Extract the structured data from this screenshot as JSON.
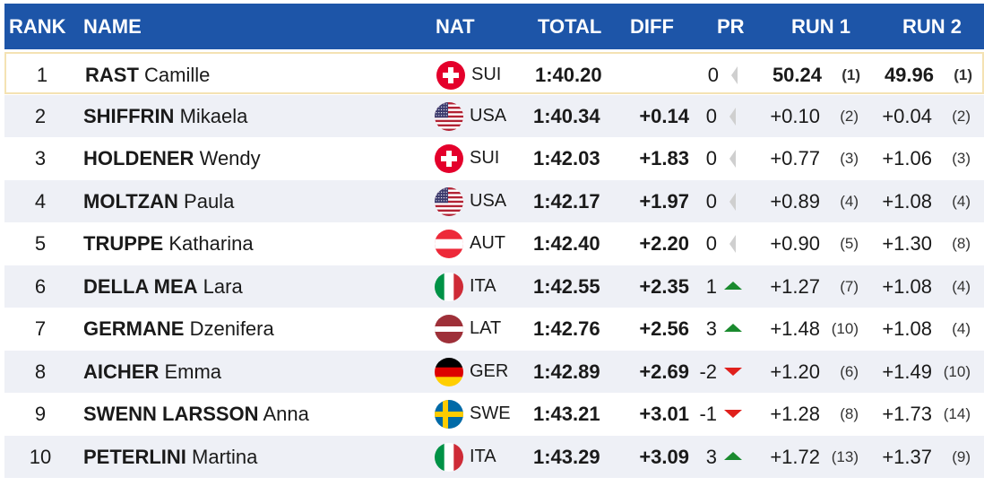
{
  "header": {
    "rank": "RANK",
    "name": "NAME",
    "nat": "NAT",
    "total": "TOTAL",
    "diff": "DIFF",
    "pr": "PR",
    "run1": "RUN 1",
    "run2": "RUN 2"
  },
  "rows": [
    {
      "rank": "1",
      "last": "RAST",
      "first": "Camille",
      "nat": "SUI",
      "flag": "sui",
      "total": "1:40.20",
      "diff": "",
      "pr": "0",
      "trend": "none",
      "run1": "50.24",
      "run1rk": "(1)",
      "run2": "49.96",
      "run2rk": "(1)"
    },
    {
      "rank": "2",
      "last": "SHIFFRIN",
      "first": "Mikaela",
      "nat": "USA",
      "flag": "usa",
      "total": "1:40.34",
      "diff": "+0.14",
      "pr": "0",
      "trend": "none",
      "run1": "+0.10",
      "run1rk": "(2)",
      "run2": "+0.04",
      "run2rk": "(2)"
    },
    {
      "rank": "3",
      "last": "HOLDENER",
      "first": "Wendy",
      "nat": "SUI",
      "flag": "sui",
      "total": "1:42.03",
      "diff": "+1.83",
      "pr": "0",
      "trend": "none",
      "run1": "+0.77",
      "run1rk": "(3)",
      "run2": "+1.06",
      "run2rk": "(3)"
    },
    {
      "rank": "4",
      "last": "MOLTZAN",
      "first": "Paula",
      "nat": "USA",
      "flag": "usa",
      "total": "1:42.17",
      "diff": "+1.97",
      "pr": "0",
      "trend": "none",
      "run1": "+0.89",
      "run1rk": "(4)",
      "run2": "+1.08",
      "run2rk": "(4)"
    },
    {
      "rank": "5",
      "last": "TRUPPE",
      "first": "Katharina",
      "nat": "AUT",
      "flag": "aut",
      "total": "1:42.40",
      "diff": "+2.20",
      "pr": "0",
      "trend": "none",
      "run1": "+0.90",
      "run1rk": "(5)",
      "run2": "+1.30",
      "run2rk": "(8)"
    },
    {
      "rank": "6",
      "last": "DELLA MEA",
      "first": "Lara",
      "nat": "ITA",
      "flag": "ita",
      "total": "1:42.55",
      "diff": "+2.35",
      "pr": "1",
      "trend": "up",
      "run1": "+1.27",
      "run1rk": "(7)",
      "run2": "+1.08",
      "run2rk": "(4)"
    },
    {
      "rank": "7",
      "last": "GERMANE",
      "first": "Dzenifera",
      "nat": "LAT",
      "flag": "lat",
      "total": "1:42.76",
      "diff": "+2.56",
      "pr": "3",
      "trend": "up",
      "run1": "+1.48",
      "run1rk": "(10)",
      "run2": "+1.08",
      "run2rk": "(4)"
    },
    {
      "rank": "8",
      "last": "AICHER",
      "first": "Emma",
      "nat": "GER",
      "flag": "ger",
      "total": "1:42.89",
      "diff": "+2.69",
      "pr": "-2",
      "trend": "down",
      "run1": "+1.20",
      "run1rk": "(6)",
      "run2": "+1.49",
      "run2rk": "(10)"
    },
    {
      "rank": "9",
      "last": "SWENN LARSSON",
      "first": "Anna",
      "nat": "SWE",
      "flag": "swe",
      "total": "1:43.21",
      "diff": "+3.01",
      "pr": "-1",
      "trend": "down",
      "run1": "+1.28",
      "run1rk": "(8)",
      "run2": "+1.73",
      "run2rk": "(14)"
    },
    {
      "rank": "10",
      "last": "PETERLINI",
      "first": "Martina",
      "nat": "ITA",
      "flag": "ita",
      "total": "1:43.29",
      "diff": "+3.09",
      "pr": "3",
      "trend": "up",
      "run1": "+1.72",
      "run1rk": "(13)",
      "run2": "+1.37",
      "run2rk": "(9)"
    }
  ],
  "colors": {
    "header_bg": "#1d55a8",
    "alt_row": "#eef0f6",
    "up": "#1a8a2e",
    "down": "#e0201c",
    "neutral": "#cfcfcf",
    "highlight_border": "#f4e2b3"
  }
}
